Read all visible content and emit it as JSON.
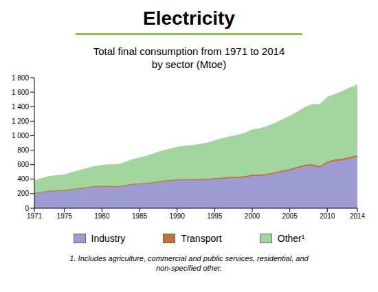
{
  "chart_data": {
    "type": "area",
    "title": "Electricity",
    "subtitle": "Total final consumption from 1971 to 2014 by sector (Mtoe)",
    "footnote": "1. Includes agriculture, commercial and public services, residential, and non-specified other.",
    "stacked": true,
    "grid": false,
    "legend": "bottom",
    "x": [
      1971,
      1972,
      1973,
      1974,
      1975,
      1976,
      1977,
      1978,
      1979,
      1980,
      1981,
      1982,
      1983,
      1984,
      1985,
      1986,
      1987,
      1988,
      1989,
      1990,
      1991,
      1992,
      1993,
      1994,
      1995,
      1996,
      1997,
      1998,
      1999,
      2000,
      2001,
      2002,
      2003,
      2004,
      2005,
      2006,
      2007,
      2008,
      2009,
      2010,
      2011,
      2012,
      2013,
      2014
    ],
    "xlim": [
      1971,
      2014
    ],
    "xticks": [
      1971,
      1975,
      1980,
      1985,
      1990,
      1995,
      2000,
      2005,
      2010,
      2014
    ],
    "ylim": [
      0,
      1800
    ],
    "yticks": [
      0,
      200,
      400,
      600,
      800,
      {
        "value": 1000,
        "label": "1 000"
      },
      {
        "value": 1200,
        "label": "1 200"
      },
      {
        "value": 1400,
        "label": "1 400"
      },
      {
        "value": 1600,
        "label": "1 600"
      },
      {
        "value": 1800,
        "label": "1 800"
      }
    ],
    "series": [
      {
        "name": "Industry",
        "color": "#9c9cd3",
        "values": [
          200,
          215,
          230,
          235,
          240,
          255,
          265,
          280,
          295,
          295,
          295,
          290,
          305,
          325,
          330,
          335,
          350,
          365,
          375,
          385,
          385,
          385,
          385,
          390,
          400,
          405,
          415,
          415,
          425,
          445,
          445,
          455,
          480,
          500,
          520,
          550,
          580,
          585,
          560,
          620,
          650,
          660,
          685,
          705
        ]
      },
      {
        "name": "Transport",
        "color": "#c2713a",
        "values": [
          10,
          10,
          11,
          11,
          11,
          11,
          11,
          12,
          12,
          12,
          12,
          12,
          12,
          12,
          12,
          13,
          13,
          13,
          13,
          14,
          14,
          15,
          15,
          15,
          15,
          16,
          16,
          16,
          17,
          17,
          17,
          18,
          18,
          19,
          19,
          20,
          20,
          21,
          21,
          22,
          22,
          23,
          23,
          24
        ]
      },
      {
        "name": "Other¹",
        "color": "#a3d69e",
        "values": [
          170,
          185,
          199,
          204,
          209,
          224,
          244,
          258,
          268,
          283,
          293,
          298,
          313,
          333,
          353,
          372,
          392,
          412,
          427,
          441,
          461,
          465,
          480,
          495,
          515,
          539,
          554,
          574,
          593,
          618,
          633,
          657,
          672,
          701,
          731,
          755,
          790,
          824,
          849,
          888,
          898,
          927,
          952,
          971
        ]
      }
    ]
  }
}
